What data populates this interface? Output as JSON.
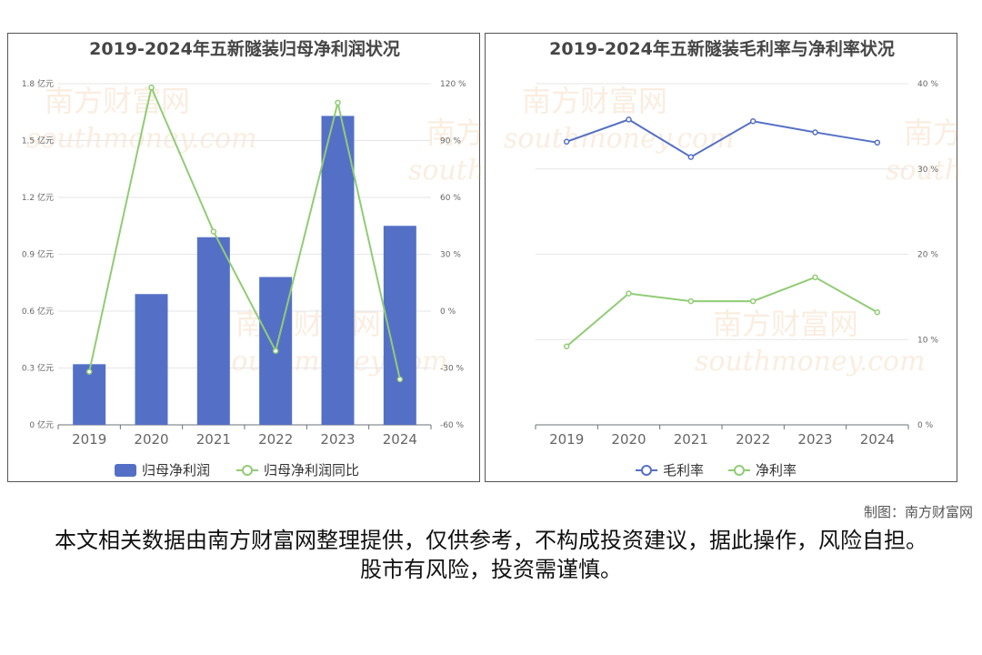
{
  "watermark": {
    "cn": "南方财富网",
    "en": "southmoney.com"
  },
  "credit": "制图：南方财富网",
  "disclaimer": "本文相关数据由南方财富网整理提供，仅供参考，不构成投资建议，据此操作，风险自担。股市有风险，投资需谨慎。",
  "chart_data": [
    {
      "type": "bar",
      "title": "2019-2024年五新隧装归母净利润状况",
      "categories": [
        "2019",
        "2020",
        "2021",
        "2022",
        "2023",
        "2024"
      ],
      "series": [
        {
          "name": "归母净利润",
          "type": "bar",
          "axis": "left",
          "color": "#5470c6",
          "values": [
            0.32,
            0.69,
            0.99,
            0.78,
            1.63,
            1.05
          ]
        },
        {
          "name": "归母净利润同比",
          "type": "line",
          "axis": "right",
          "color": "#91cc75",
          "values": [
            -32,
            118,
            42,
            -21,
            110,
            -36
          ]
        }
      ],
      "y_left": {
        "min": 0,
        "max": 1.8,
        "step": 0.3,
        "ticks": [
          "0 亿元",
          "0.3 亿元",
          "0.6 亿元",
          "0.9 亿元",
          "1.2 亿元",
          "1.5 亿元",
          "1.8 亿元"
        ]
      },
      "y_right": {
        "min": -60,
        "max": 120,
        "step": 30,
        "ticks": [
          "-60 %",
          "-30 %",
          "0 %",
          "30 %",
          "60 %",
          "90 %",
          "120 %"
        ]
      },
      "grid": true,
      "legend_position": "bottom"
    },
    {
      "type": "line",
      "title": "2019-2024年五新隧装毛利率与净利率状况",
      "categories": [
        "2019",
        "2020",
        "2021",
        "2022",
        "2023",
        "2024"
      ],
      "series": [
        {
          "name": "毛利率",
          "color": "#5470c6",
          "values": [
            33.2,
            35.8,
            31.4,
            35.6,
            34.3,
            33.1
          ]
        },
        {
          "name": "净利率",
          "color": "#91cc75",
          "values": [
            9.2,
            15.4,
            14.5,
            14.5,
            17.3,
            13.2
          ]
        }
      ],
      "y_right": {
        "min": 0,
        "max": 40,
        "step": 10,
        "ticks": [
          "0 %",
          "10 %",
          "20 %",
          "30 %",
          "40 %"
        ]
      },
      "grid": true,
      "legend_position": "bottom"
    }
  ]
}
